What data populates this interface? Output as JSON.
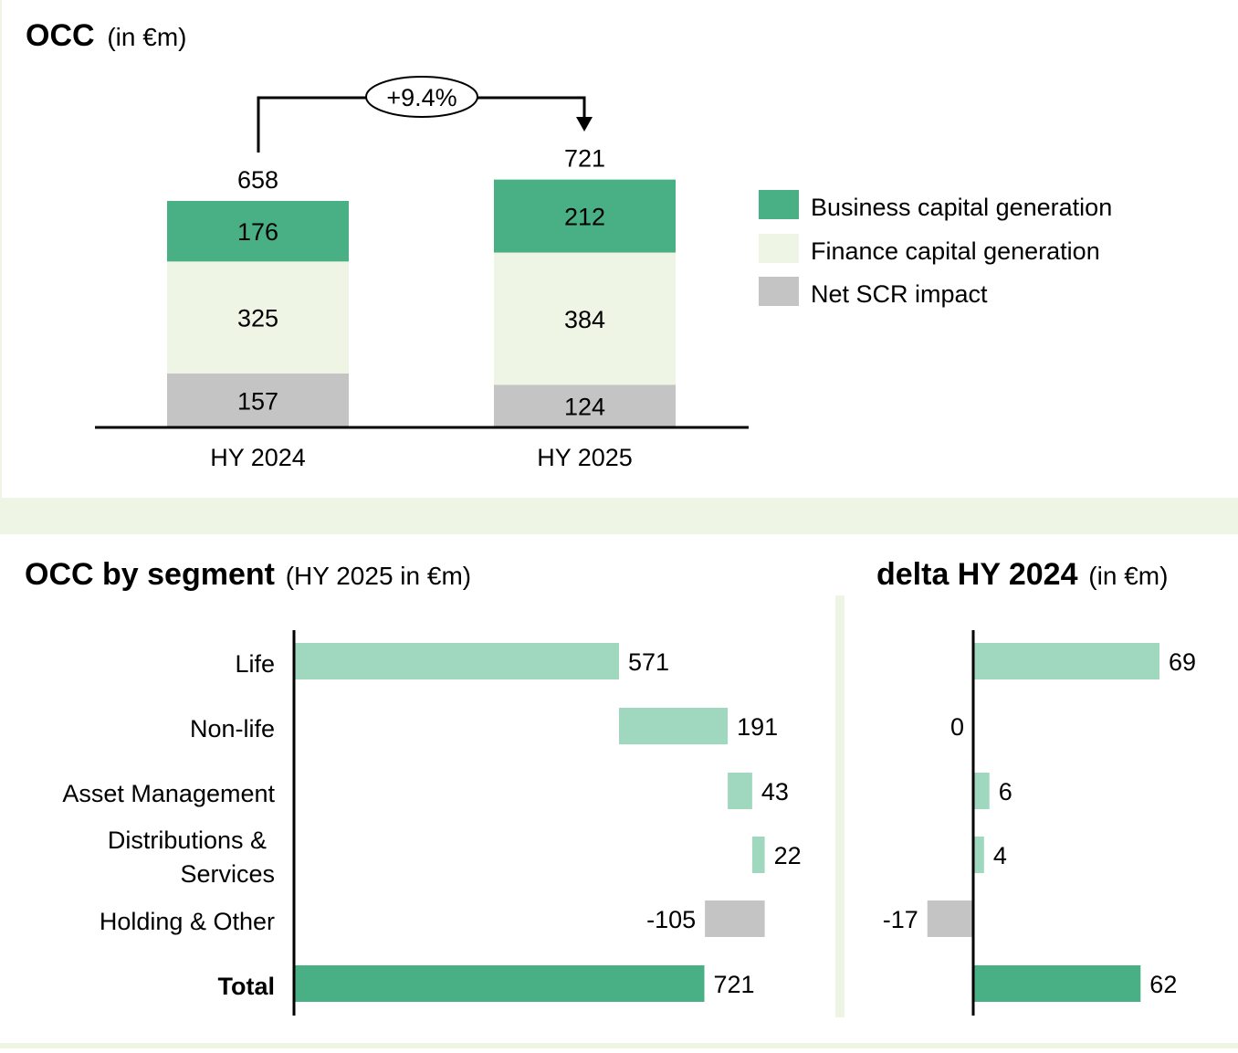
{
  "colors": {
    "business": "#48b084",
    "finance": "#eef5e4",
    "net_scr": "#c4c4c4",
    "segment_bar": "#a0d8bf",
    "total_bar": "#48b084",
    "negative_bar": "#c4c4c4",
    "band": "#eef5e4"
  },
  "chart_data": [
    {
      "type": "bar",
      "stacked": true,
      "title": "OCC",
      "subtitle": "(in €m)",
      "categories": [
        "HY 2024",
        "HY 2025"
      ],
      "totals": [
        658,
        721
      ],
      "series": [
        {
          "name": "Net SCR impact",
          "values": [
            157,
            124
          ]
        },
        {
          "name": "Finance capital generation",
          "values": [
            325,
            384
          ]
        },
        {
          "name": "Business capital generation",
          "values": [
            176,
            212
          ]
        }
      ],
      "annotation": "+9.4%",
      "legend": "right",
      "ylim": [
        0,
        721
      ]
    },
    {
      "type": "bar",
      "orientation": "horizontal",
      "waterfall": true,
      "title": "OCC by segment",
      "subtitle": "(HY 2025 in €m)",
      "categories": [
        "Life",
        "Non-life",
        "Asset Management",
        "Distributions & Services",
        "Holding & Other",
        "Total"
      ],
      "values": [
        571,
        191,
        43,
        22,
        -105,
        721
      ],
      "labels": [
        "571",
        "191",
        "43",
        "22",
        "-105",
        "721"
      ]
    },
    {
      "type": "bar",
      "orientation": "horizontal",
      "title": "delta HY 2024",
      "subtitle": "(in €m)",
      "categories": [
        "Life",
        "Non-life",
        "Asset Management",
        "Distributions & Services",
        "Holding & Other",
        "Total"
      ],
      "values": [
        69,
        0,
        6,
        4,
        -17,
        62
      ],
      "labels": [
        "69",
        "0",
        "6",
        "4",
        "-17",
        "62"
      ]
    }
  ]
}
